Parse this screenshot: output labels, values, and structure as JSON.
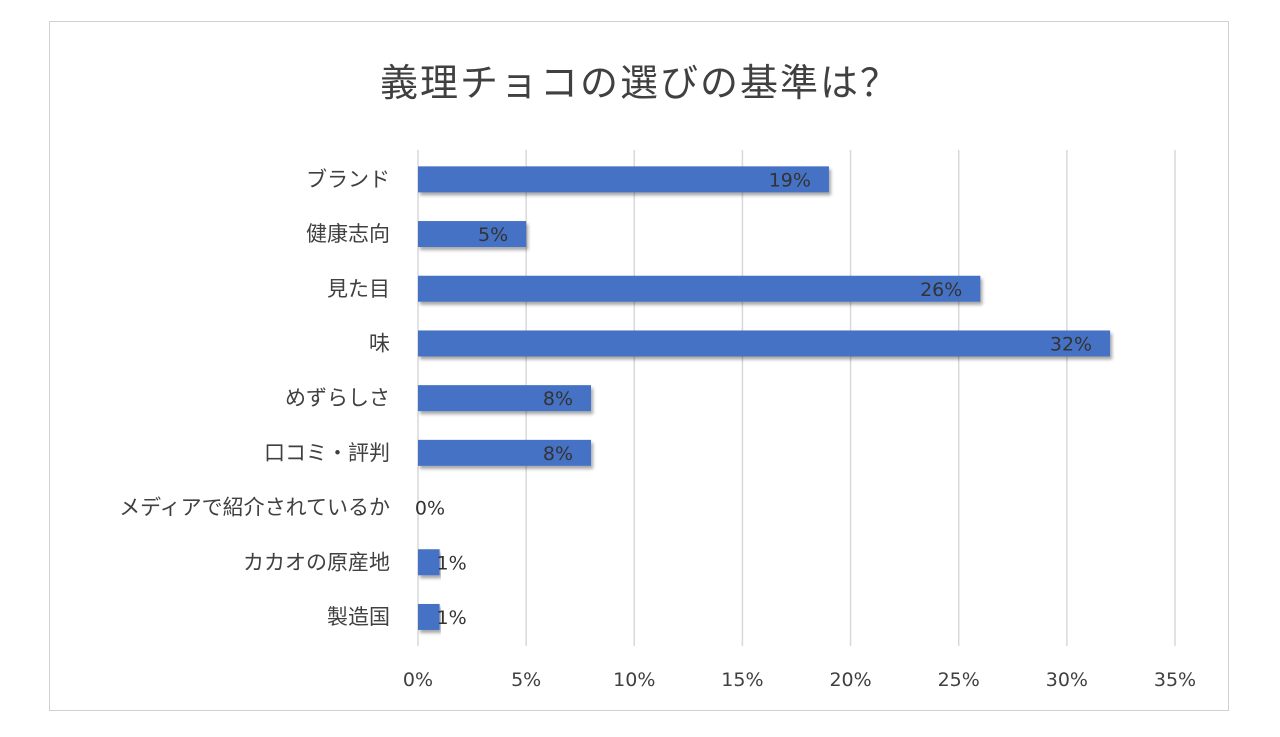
{
  "chart_data": {
    "type": "bar",
    "orientation": "horizontal",
    "title": "義理チョコの選びの基準は？",
    "categories": [
      "ブランド",
      "健康志向",
      "見た目",
      "味",
      "めずらしさ",
      "口コミ・評判",
      "メディアで紹介されているか",
      "カカオの原産地",
      "製造国"
    ],
    "values": [
      19,
      5,
      26,
      32,
      8,
      8,
      0,
      1,
      1
    ],
    "data_labels": [
      "19%",
      "5%",
      "26%",
      "32%",
      "8%",
      "8%",
      "0%",
      "1%",
      "1%"
    ],
    "xticks": [
      "0%",
      "5%",
      "10%",
      "15%",
      "20%",
      "25%",
      "30%",
      "35%"
    ],
    "xlim": [
      0,
      35
    ],
    "xlabel": "",
    "ylabel": "",
    "grid": "vertical",
    "bar_color": "#4472c4"
  }
}
